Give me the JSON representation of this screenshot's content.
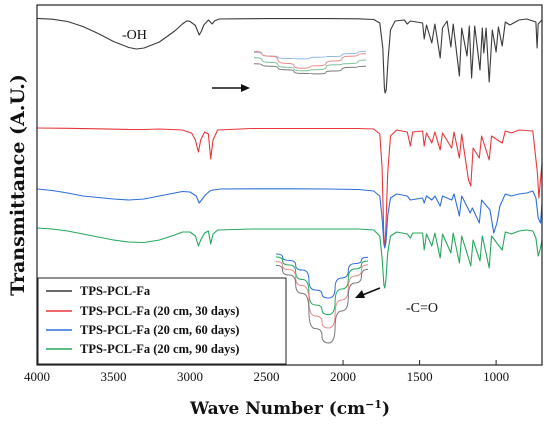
{
  "chart_data": {
    "type": "line",
    "title": "",
    "xlabel_main": "Wave Number (cm",
    "xlabel_exp": "−1",
    "xlabel_close": ")",
    "ylabel": "Transmittance (A.U.)",
    "xlim": [
      4000,
      700
    ],
    "x_reversed": true,
    "x_ticks": [
      4000,
      3500,
      3000,
      2500,
      2000,
      1500,
      1000
    ],
    "y_ticks": false,
    "legend_position": "bottom-left",
    "annotations": [
      {
        "text": "-OH",
        "x": 3160
      },
      {
        "text": "-C=O",
        "x": 1595
      }
    ],
    "series": [
      {
        "name": "TPS-PCL-Fa",
        "color": "#3a3a3a",
        "offset": 0,
        "points": [
          [
            4000,
            0.4
          ],
          [
            3900,
            1.2
          ],
          [
            3800,
            3.5
          ],
          [
            3700,
            8.5
          ],
          [
            3600,
            15.5
          ],
          [
            3500,
            23.5
          ],
          [
            3400,
            29.5
          ],
          [
            3350,
            31.0
          ],
          [
            3300,
            30.0
          ],
          [
            3200,
            24.0
          ],
          [
            3100,
            13.0
          ],
          [
            3050,
            6.0
          ],
          [
            3020,
            2.8
          ],
          [
            3000,
            3.4
          ],
          [
            2965,
            7.5
          ],
          [
            2940,
            17.0
          ],
          [
            2925,
            13.0
          ],
          [
            2910,
            7.0
          ],
          [
            2880,
            2.0
          ],
          [
            2855,
            6.0
          ],
          [
            2840,
            3.0
          ],
          [
            2810,
            1.0
          ],
          [
            2700,
            0.8
          ],
          [
            2500,
            0.6
          ],
          [
            2300,
            0.6
          ],
          [
            2100,
            0.6
          ],
          [
            1900,
            0.8
          ],
          [
            1800,
            1.5
          ],
          [
            1760,
            5.0
          ],
          [
            1740,
            30.0
          ],
          [
            1730,
            70.0
          ],
          [
            1725,
            75.0
          ],
          [
            1718,
            72.0
          ],
          [
            1705,
            40.0
          ],
          [
            1690,
            12.0
          ],
          [
            1660,
            3.0
          ],
          [
            1600,
            2.0
          ],
          [
            1580,
            6.0
          ],
          [
            1560,
            3.0
          ],
          [
            1480,
            5.0
          ],
          [
            1470,
            21.0
          ],
          [
            1455,
            7.0
          ],
          [
            1420,
            25.0
          ],
          [
            1400,
            6.0
          ],
          [
            1365,
            40.0
          ],
          [
            1350,
            10.0
          ],
          [
            1320,
            3.0
          ],
          [
            1295,
            29.0
          ],
          [
            1280,
            6.0
          ],
          [
            1240,
            58.0
          ],
          [
            1225,
            10.0
          ],
          [
            1190,
            38.0
          ],
          [
            1175,
            8.0
          ],
          [
            1160,
            60.0
          ],
          [
            1140,
            8.0
          ],
          [
            1105,
            52.0
          ],
          [
            1090,
            10.0
          ],
          [
            1080,
            35.0
          ],
          [
            1065,
            10.0
          ],
          [
            1045,
            64.0
          ],
          [
            1025,
            12.0
          ],
          [
            1000,
            34.0
          ],
          [
            985,
            9.0
          ],
          [
            960,
            28.0
          ],
          [
            940,
            4.0
          ],
          [
            910,
            7.0
          ],
          [
            850,
            2.0
          ],
          [
            800,
            1.0
          ],
          [
            740,
            4.0
          ],
          [
            732,
            30.0
          ],
          [
            725,
            6.0
          ],
          [
            700,
            2.0
          ]
        ]
      },
      {
        "name": "TPS-PCL-Fa (20 cm, 30 days)",
        "color": "#e8373a",
        "offset": 110,
        "points": [
          [
            4000,
            0.0
          ],
          [
            3800,
            0.3
          ],
          [
            3600,
            0.8
          ],
          [
            3400,
            1.5
          ],
          [
            3300,
            1.5
          ],
          [
            3200,
            1.0
          ],
          [
            3050,
            2.0
          ],
          [
            2990,
            5.0
          ],
          [
            2965,
            12.0
          ],
          [
            2945,
            24.0
          ],
          [
            2930,
            12.0
          ],
          [
            2905,
            4.0
          ],
          [
            2880,
            6.0
          ],
          [
            2865,
            31.0
          ],
          [
            2850,
            12.0
          ],
          [
            2820,
            2.0
          ],
          [
            2600,
            0.5
          ],
          [
            2200,
            0.5
          ],
          [
            1900,
            0.5
          ],
          [
            1800,
            1.0
          ],
          [
            1760,
            6.0
          ],
          [
            1745,
            40.0
          ],
          [
            1733,
            112.0
          ],
          [
            1727,
            118.0
          ],
          [
            1720,
            100.0
          ],
          [
            1708,
            45.0
          ],
          [
            1690,
            8.0
          ],
          [
            1650,
            2.0
          ],
          [
            1580,
            4.0
          ],
          [
            1560,
            18.0
          ],
          [
            1545,
            4.0
          ],
          [
            1480,
            3.0
          ],
          [
            1470,
            18.0
          ],
          [
            1455,
            5.0
          ],
          [
            1420,
            15.0
          ],
          [
            1400,
            4.0
          ],
          [
            1365,
            22.0
          ],
          [
            1350,
            5.0
          ],
          [
            1290,
            20.0
          ],
          [
            1275,
            4.0
          ],
          [
            1240,
            30.0
          ],
          [
            1225,
            6.0
          ],
          [
            1180,
            52.0
          ],
          [
            1165,
            58.0
          ],
          [
            1150,
            20.0
          ],
          [
            1110,
            30.0
          ],
          [
            1095,
            8.0
          ],
          [
            1045,
            32.0
          ],
          [
            1030,
            8.0
          ],
          [
            960,
            15.0
          ],
          [
            940,
            3.0
          ],
          [
            900,
            5.0
          ],
          [
            850,
            2.0
          ],
          [
            760,
            3.0
          ],
          [
            730,
            45.0
          ],
          [
            720,
            70.0
          ],
          [
            700,
            35.0
          ]
        ]
      },
      {
        "name": "TPS-PCL-Fa (20 cm, 60 days)",
        "color": "#2e6fdb",
        "offset": 170,
        "points": [
          [
            4000,
            1.0
          ],
          [
            3900,
            2.5
          ],
          [
            3800,
            5.0
          ],
          [
            3700,
            8.0
          ],
          [
            3500,
            11.0
          ],
          [
            3400,
            12.0
          ],
          [
            3300,
            11.0
          ],
          [
            3200,
            8.0
          ],
          [
            3100,
            5.0
          ],
          [
            3050,
            3.5
          ],
          [
            3000,
            4.0
          ],
          [
            2960,
            8.0
          ],
          [
            2940,
            15.0
          ],
          [
            2925,
            12.0
          ],
          [
            2900,
            7.0
          ],
          [
            2870,
            3.0
          ],
          [
            2850,
            2.0
          ],
          [
            2800,
            1.0
          ],
          [
            2600,
            0.8
          ],
          [
            2300,
            0.8
          ],
          [
            2100,
            1.0
          ],
          [
            1900,
            1.5
          ],
          [
            1800,
            3.0
          ],
          [
            1760,
            8.0
          ],
          [
            1745,
            30.0
          ],
          [
            1733,
            56.0
          ],
          [
            1727,
            60.0
          ],
          [
            1720,
            55.0
          ],
          [
            1708,
            28.0
          ],
          [
            1690,
            10.0
          ],
          [
            1650,
            6.0
          ],
          [
            1580,
            8.0
          ],
          [
            1560,
            12.0
          ],
          [
            1480,
            10.0
          ],
          [
            1470,
            15.0
          ],
          [
            1455,
            8.0
          ],
          [
            1420,
            12.0
          ],
          [
            1400,
            8.0
          ],
          [
            1365,
            18.0
          ],
          [
            1350,
            8.0
          ],
          [
            1290,
            12.0
          ],
          [
            1275,
            6.0
          ],
          [
            1240,
            28.0
          ],
          [
            1225,
            8.0
          ],
          [
            1185,
            20.0
          ],
          [
            1170,
            25.0
          ],
          [
            1155,
            20.0
          ],
          [
            1110,
            35.0
          ],
          [
            1095,
            12.0
          ],
          [
            1040,
            22.0
          ],
          [
            1015,
            45.0
          ],
          [
            995,
            35.0
          ],
          [
            975,
            18.0
          ],
          [
            940,
            6.0
          ],
          [
            900,
            8.0
          ],
          [
            850,
            6.0
          ],
          [
            800,
            5.0
          ],
          [
            760,
            3.0
          ],
          [
            740,
            10.0
          ],
          [
            725,
            30.0
          ],
          [
            710,
            35.0
          ],
          [
            700,
            15.0
          ]
        ]
      },
      {
        "name": "TPS-PCL-Fa (20 cm, 90 days)",
        "color": "#25a85c",
        "offset": 210,
        "points": [
          [
            4000,
            0.0
          ],
          [
            3900,
            1.0
          ],
          [
            3800,
            3.0
          ],
          [
            3700,
            6.0
          ],
          [
            3600,
            9.0
          ],
          [
            3500,
            12.0
          ],
          [
            3400,
            14.0
          ],
          [
            3300,
            14.5
          ],
          [
            3200,
            12.0
          ],
          [
            3100,
            7.0
          ],
          [
            3050,
            4.0
          ],
          [
            3000,
            4.0
          ],
          [
            2965,
            8.0
          ],
          [
            2945,
            18.0
          ],
          [
            2930,
            12.0
          ],
          [
            2905,
            5.0
          ],
          [
            2880,
            3.0
          ],
          [
            2865,
            16.0
          ],
          [
            2850,
            6.0
          ],
          [
            2820,
            2.0
          ],
          [
            2600,
            1.0
          ],
          [
            2200,
            1.0
          ],
          [
            1900,
            1.0
          ],
          [
            1800,
            2.0
          ],
          [
            1760,
            8.0
          ],
          [
            1745,
            30.0
          ],
          [
            1733,
            57.0
          ],
          [
            1727,
            60.0
          ],
          [
            1720,
            52.0
          ],
          [
            1708,
            25.0
          ],
          [
            1690,
            8.0
          ],
          [
            1650,
            4.0
          ],
          [
            1580,
            6.0
          ],
          [
            1560,
            10.0
          ],
          [
            1545,
            5.0
          ],
          [
            1480,
            5.0
          ],
          [
            1470,
            22.0
          ],
          [
            1455,
            6.0
          ],
          [
            1420,
            18.0
          ],
          [
            1400,
            5.0
          ],
          [
            1365,
            30.0
          ],
          [
            1350,
            6.0
          ],
          [
            1295,
            25.0
          ],
          [
            1280,
            5.0
          ],
          [
            1240,
            35.0
          ],
          [
            1225,
            8.0
          ],
          [
            1180,
            30.0
          ],
          [
            1165,
            38.0
          ],
          [
            1150,
            12.0
          ],
          [
            1105,
            33.0
          ],
          [
            1090,
            8.0
          ],
          [
            1045,
            40.0
          ],
          [
            1030,
            8.0
          ],
          [
            960,
            22.0
          ],
          [
            940,
            4.0
          ],
          [
            900,
            6.0
          ],
          [
            850,
            3.0
          ],
          [
            800,
            2.0
          ],
          [
            760,
            3.0
          ],
          [
            740,
            10.0
          ],
          [
            725,
            28.0
          ],
          [
            710,
            20.0
          ],
          [
            700,
            12.0
          ]
        ]
      }
    ],
    "insets": [
      {
        "name": "inset-oh",
        "note_colors": [
          "#8fb8e6",
          "#e88a8a",
          "#7fc29a",
          "#777777"
        ],
        "curves": [
          {
            "color": "#8fb8e6",
            "values": [
              0.35,
              0.5,
              0.6,
              0.62,
              0.55,
              0.52,
              0.4,
              0.3
            ]
          },
          {
            "color": "#e88a8a",
            "values": [
              0.1,
              0.3,
              0.6,
              0.8,
              0.7,
              0.5,
              0.3,
              0.2
            ]
          },
          {
            "color": "#7fc29a",
            "values": [
              0.15,
              0.35,
              0.55,
              0.7,
              0.65,
              0.45,
              0.4,
              0.25
            ]
          },
          {
            "color": "#777777",
            "values": [
              0.2,
              0.3,
              0.45,
              0.6,
              0.62,
              0.5,
              0.35,
              0.3
            ]
          }
        ]
      },
      {
        "name": "inset-co",
        "curves": [
          {
            "color": "#2e6fdb",
            "values": [
              0.0,
              0.08,
              0.2,
              0.45,
              0.55,
              0.3,
              0.12,
              0.04
            ]
          },
          {
            "color": "#25a85c",
            "values": [
              0.0,
              0.1,
              0.28,
              0.6,
              0.72,
              0.4,
              0.15,
              0.05
            ]
          },
          {
            "color": "#e88a8a",
            "values": [
              0.02,
              0.12,
              0.32,
              0.7,
              0.85,
              0.5,
              0.2,
              0.06
            ]
          },
          {
            "color": "#777777",
            "values": [
              0.03,
              0.15,
              0.38,
              0.82,
              1.0,
              0.6,
              0.25,
              0.08
            ]
          }
        ]
      }
    ]
  }
}
